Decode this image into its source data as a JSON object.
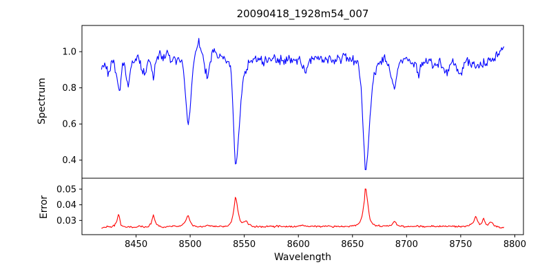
{
  "figure": {
    "title": "20090418_1928m54_007",
    "background": "#ffffff"
  },
  "chart_data": [
    {
      "type": "line",
      "name": "spectrum-panel",
      "title": "20090418_1928m54_007",
      "ylabel": "Spectrum",
      "xlim": [
        8400,
        8808
      ],
      "ylim": [
        0.3,
        1.145
      ],
      "yticks": [
        0.4,
        0.6,
        0.8,
        1.0
      ],
      "ytick_labels": [
        "0.4",
        "0.6",
        "0.8",
        "1.0"
      ],
      "xticks": [],
      "grid": false,
      "line_color": "#0000ff",
      "noise": {
        "amplitude": 0.032,
        "seed": 20090418,
        "step": 0.75,
        "damp_below": 0.87
      },
      "anchors": {
        "x": [
          8418,
          8420,
          8423,
          8425,
          8427,
          8429,
          8431,
          8433,
          8435,
          8437,
          8439,
          8441,
          8443,
          8445,
          8447,
          8450,
          8452,
          8454,
          8456,
          8458,
          8460,
          8462,
          8464,
          8466,
          8468,
          8470,
          8472,
          8474,
          8476,
          8478,
          8480,
          8482,
          8485,
          8488,
          8490,
          8492,
          8494,
          8496,
          8498,
          8500,
          8502,
          8504,
          8506,
          8508,
          8510,
          8512,
          8514,
          8516,
          8518,
          8520,
          8522,
          8524,
          8526,
          8528,
          8530,
          8532,
          8534,
          8536,
          8538,
          8540,
          8541,
          8542,
          8543,
          8545,
          8547,
          8549,
          8551,
          8554,
          8557,
          8560,
          8564,
          8568,
          8572,
          8576,
          8580,
          8584,
          8588,
          8592,
          8596,
          8600,
          8604,
          8607,
          8610,
          8613,
          8616,
          8620,
          8624,
          8628,
          8632,
          8636,
          8640,
          8644,
          8648,
          8651,
          8654,
          8656,
          8658,
          8660,
          8662,
          8664,
          8666,
          8668,
          8670,
          8673,
          8676,
          8680,
          8683,
          8686,
          8689,
          8691,
          8693,
          8696,
          8700,
          8704,
          8708,
          8711,
          8714,
          8718,
          8722,
          8726,
          8730,
          8734,
          8738,
          8742,
          8746,
          8750,
          8753,
          8756,
          8760,
          8764,
          8767,
          8770,
          8773,
          8776,
          8779,
          8782,
          8785,
          8788,
          8790
        ],
        "y": [
          0.9,
          0.935,
          0.91,
          0.87,
          0.94,
          0.95,
          0.9,
          0.83,
          0.77,
          0.92,
          0.95,
          0.86,
          0.8,
          0.91,
          0.95,
          0.96,
          0.975,
          0.93,
          0.89,
          0.865,
          0.93,
          0.96,
          0.93,
          0.84,
          0.93,
          0.97,
          0.995,
          0.975,
          0.985,
          1.0,
          0.97,
          0.955,
          0.945,
          0.965,
          0.95,
          0.935,
          0.88,
          0.74,
          0.585,
          0.68,
          0.86,
          0.97,
          1.02,
          1.055,
          1.01,
          0.975,
          0.9,
          0.845,
          0.93,
          0.99,
          1.005,
          0.985,
          0.975,
          0.985,
          0.97,
          0.96,
          0.955,
          0.945,
          0.88,
          0.62,
          0.45,
          0.35,
          0.4,
          0.55,
          0.72,
          0.85,
          0.9,
          0.935,
          0.95,
          0.955,
          0.965,
          0.94,
          0.96,
          0.975,
          0.95,
          0.96,
          0.945,
          0.965,
          0.95,
          0.96,
          0.92,
          0.89,
          0.945,
          0.965,
          0.95,
          0.975,
          0.955,
          0.97,
          0.95,
          0.975,
          0.96,
          0.965,
          0.95,
          0.955,
          0.945,
          0.9,
          0.8,
          0.55,
          0.33,
          0.42,
          0.62,
          0.78,
          0.87,
          0.92,
          0.945,
          0.955,
          0.93,
          0.86,
          0.785,
          0.87,
          0.93,
          0.955,
          0.965,
          0.945,
          0.93,
          0.875,
          0.93,
          0.955,
          0.945,
          0.92,
          0.945,
          0.915,
          0.89,
          0.94,
          0.925,
          0.875,
          0.93,
          0.95,
          0.935,
          0.915,
          0.9,
          0.945,
          0.93,
          0.96,
          0.945,
          0.975,
          0.995,
          1.01,
          1.015
        ]
      }
    },
    {
      "type": "line",
      "name": "error-panel",
      "xlabel": "Wavelength",
      "ylabel": "Error",
      "xlim": [
        8400,
        8808
      ],
      "ylim": [
        0.0209,
        0.057
      ],
      "yticks": [
        0.03,
        0.04,
        0.05
      ],
      "ytick_labels": [
        "0.03",
        "0.04",
        "0.05"
      ],
      "xticks": [
        8450,
        8500,
        8550,
        8600,
        8650,
        8700,
        8750,
        8800
      ],
      "xtick_labels": [
        "8450",
        "8500",
        "8550",
        "8600",
        "8650",
        "8700",
        "8750",
        "8800"
      ],
      "grid": false,
      "line_color": "#ff0000",
      "noise": {
        "amplitude": 0.0007,
        "seed": 1928054,
        "step": 0.75,
        "damp_above": 0.0285
      },
      "anchors": {
        "x": [
          8418,
          8421,
          8424,
          8427,
          8430,
          8432,
          8434,
          8436,
          8438,
          8441,
          8444,
          8447,
          8450,
          8453,
          8456,
          8459,
          8462,
          8464,
          8466,
          8468,
          8470,
          8473,
          8476,
          8479,
          8482,
          8485,
          8488,
          8491,
          8494,
          8496,
          8498,
          8500,
          8502,
          8505,
          8508,
          8511,
          8514,
          8517,
          8520,
          8523,
          8526,
          8529,
          8532,
          8535,
          8538,
          8540,
          8542,
          8544,
          8546,
          8548,
          8550,
          8552,
          8554,
          8557,
          8560,
          8564,
          8568,
          8572,
          8576,
          8580,
          8584,
          8588,
          8592,
          8596,
          8600,
          8604,
          8608,
          8612,
          8616,
          8620,
          8624,
          8628,
          8632,
          8636,
          8640,
          8644,
          8648,
          8651,
          8654,
          8657,
          8659,
          8661,
          8662,
          8664,
          8666,
          8668,
          8671,
          8674,
          8677,
          8680,
          8683,
          8686,
          8689,
          8691,
          8694,
          8697,
          8700,
          8704,
          8708,
          8712,
          8716,
          8720,
          8724,
          8728,
          8732,
          8736,
          8740,
          8744,
          8748,
          8752,
          8755,
          8758,
          8760,
          8762,
          8764,
          8766,
          8768,
          8770,
          8771,
          8773,
          8775,
          8777,
          8779,
          8781,
          8784,
          8787,
          8790
        ],
        "y": [
          0.025,
          0.0256,
          0.026,
          0.0258,
          0.0266,
          0.029,
          0.0345,
          0.0272,
          0.0262,
          0.0258,
          0.026,
          0.0256,
          0.0258,
          0.0262,
          0.026,
          0.0258,
          0.0264,
          0.0285,
          0.0335,
          0.0285,
          0.0266,
          0.026,
          0.0258,
          0.026,
          0.0263,
          0.026,
          0.0262,
          0.0266,
          0.0278,
          0.03,
          0.0335,
          0.0295,
          0.0272,
          0.0263,
          0.0258,
          0.026,
          0.0264,
          0.027,
          0.0265,
          0.0262,
          0.026,
          0.0262,
          0.0264,
          0.0268,
          0.029,
          0.035,
          0.046,
          0.037,
          0.03,
          0.0285,
          0.0292,
          0.0298,
          0.0275,
          0.0264,
          0.026,
          0.0262,
          0.026,
          0.0263,
          0.026,
          0.0262,
          0.0264,
          0.026,
          0.0262,
          0.026,
          0.0265,
          0.0268,
          0.0262,
          0.026,
          0.0263,
          0.026,
          0.0262,
          0.0265,
          0.026,
          0.0262,
          0.026,
          0.0263,
          0.0262,
          0.0266,
          0.027,
          0.029,
          0.033,
          0.043,
          0.0525,
          0.042,
          0.031,
          0.028,
          0.027,
          0.0266,
          0.0263,
          0.0264,
          0.0266,
          0.0272,
          0.0295,
          0.0272,
          0.0264,
          0.026,
          0.0262,
          0.026,
          0.0262,
          0.0263,
          0.026,
          0.0262,
          0.0261,
          0.0263,
          0.026,
          0.0262,
          0.0263,
          0.026,
          0.0262,
          0.026,
          0.0263,
          0.0268,
          0.0278,
          0.029,
          0.033,
          0.0285,
          0.0272,
          0.029,
          0.032,
          0.028,
          0.0272,
          0.029,
          0.0285,
          0.0268,
          0.0258,
          0.0254,
          0.0252
        ]
      }
    }
  ]
}
